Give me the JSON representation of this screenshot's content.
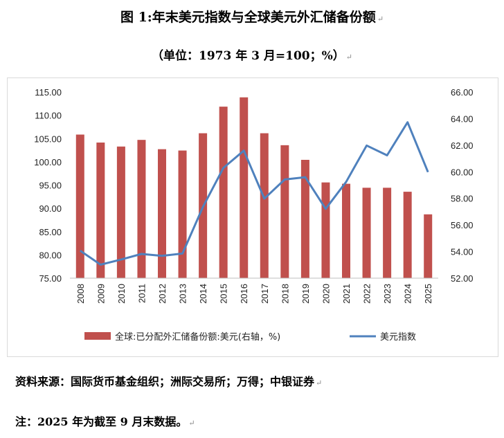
{
  "title": "图 1:年末美元指数与全球美元外汇储备份额",
  "subtitle": "（单位：1973 年 3 月=100；%）",
  "paragraph_mark": "↵",
  "source": "资料来源：国际货币基金组织；洲际交易所；万得；中银证券",
  "note": "注：2025 年为截至 9 月末数据。",
  "colors": {
    "bar": "#C0504D",
    "line": "#4F81BD"
  },
  "chart_data": {
    "type": "bar+line",
    "categories": [
      "2008",
      "2009",
      "2010",
      "2011",
      "2012",
      "2013",
      "2014",
      "2015",
      "2016",
      "2017",
      "2018",
      "2019",
      "2020",
      "2021",
      "2022",
      "2023",
      "2024",
      "2025"
    ],
    "series": [
      {
        "name": "全球:已分配外汇储备份额:美元(右轴，%)",
        "type": "bar",
        "axis": "right",
        "values": [
          62.8,
          62.2,
          61.9,
          62.4,
          61.7,
          61.6,
          62.9,
          64.9,
          65.6,
          62.9,
          62.0,
          60.9,
          59.2,
          59.1,
          58.8,
          58.8,
          58.5,
          56.8
        ]
      },
      {
        "name": "美元指数",
        "type": "line",
        "axis": "left",
        "values": [
          80.9,
          77.9,
          79.0,
          80.2,
          79.8,
          80.3,
          90.3,
          98.7,
          102.4,
          92.1,
          96.2,
          96.7,
          89.9,
          95.7,
          103.5,
          101.4,
          108.5,
          97.8
        ]
      }
    ],
    "y_left": {
      "min": 75,
      "max": 115,
      "step": 5,
      "tick_labels": [
        "75.00",
        "80.00",
        "85.00",
        "90.00",
        "95.00",
        "100.00",
        "105.00",
        "110.00",
        "115.00"
      ]
    },
    "y_right": {
      "min": 52,
      "max": 66,
      "step": 2,
      "tick_labels": [
        "52.00",
        "54.00",
        "56.00",
        "58.00",
        "60.00",
        "62.00",
        "64.00",
        "66.00"
      ]
    },
    "grid": false,
    "legend_position": "bottom"
  }
}
